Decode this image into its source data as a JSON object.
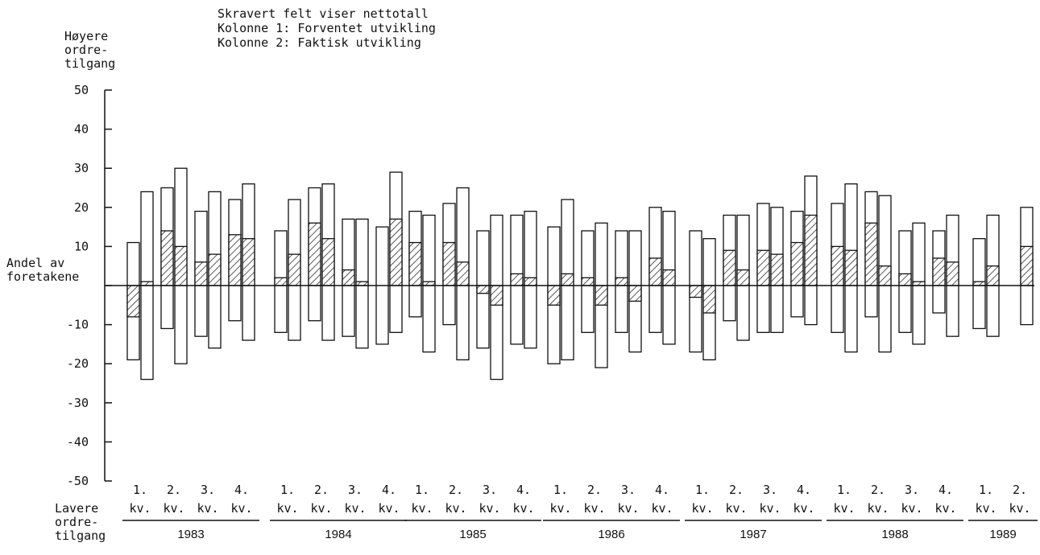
{
  "chart_data": {
    "type": "bar",
    "legend_lines": [
      "Skravert felt viser nettotall",
      "Kolonne 1:  Forventet utvikling",
      "Kolonne 2:  Faktisk utvikling"
    ],
    "upper_axis_label": [
      "Høyere",
      "ordre-",
      "tilgang"
    ],
    "lower_axis_label": [
      "Lavere",
      "ordre-",
      "tilgang"
    ],
    "zero_label": [
      "Andel av",
      "foretakene"
    ],
    "y_ticks": [
      "50",
      "40",
      "30",
      "20",
      "10",
      "0",
      "-10",
      "-20",
      "-30",
      "-40",
      "-50"
    ],
    "ylim": [
      -50,
      50
    ],
    "quarter_line1": [
      "1.",
      "2.",
      "3.",
      "4."
    ],
    "quarter_line2": "kv.",
    "years": [
      {
        "year": "1983",
        "quarters": [
          {
            "q": 1,
            "expected": {
              "up": 11,
              "down": -19,
              "net": -8
            },
            "actual": {
              "up": 24,
              "down": -24,
              "net": 1
            }
          },
          {
            "q": 2,
            "expected": {
              "up": 25,
              "down": -11,
              "net": 14
            },
            "actual": {
              "up": 30,
              "down": -20,
              "net": 10
            }
          },
          {
            "q": 3,
            "expected": {
              "up": 19,
              "down": -13,
              "net": 6
            },
            "actual": {
              "up": 24,
              "down": -16,
              "net": 8
            }
          },
          {
            "q": 4,
            "expected": {
              "up": 22,
              "down": -9,
              "net": 13
            },
            "actual": {
              "up": 26,
              "down": -14,
              "net": 12
            }
          }
        ]
      },
      {
        "year": "1984",
        "quarters": [
          {
            "q": 1,
            "expected": {
              "up": 14,
              "down": -12,
              "net": 2
            },
            "actual": {
              "up": 22,
              "down": -14,
              "net": 8
            }
          },
          {
            "q": 2,
            "expected": {
              "up": 25,
              "down": -9,
              "net": 16
            },
            "actual": {
              "up": 26,
              "down": -14,
              "net": 12
            }
          },
          {
            "q": 3,
            "expected": {
              "up": 17,
              "down": -13,
              "net": 4
            },
            "actual": {
              "up": 17,
              "down": -16,
              "net": 1
            }
          },
          {
            "q": 4,
            "expected": {
              "up": 15,
              "down": -15,
              "net": 0
            },
            "actual": {
              "up": 29,
              "down": -12,
              "net": 17
            }
          }
        ]
      },
      {
        "year": "1985",
        "quarters": [
          {
            "q": 1,
            "expected": {
              "up": 19,
              "down": -8,
              "net": 11
            },
            "actual": {
              "up": 18,
              "down": -17,
              "net": 1
            }
          },
          {
            "q": 2,
            "expected": {
              "up": 21,
              "down": -10,
              "net": 11
            },
            "actual": {
              "up": 25,
              "down": -19,
              "net": 6
            }
          },
          {
            "q": 3,
            "expected": {
              "up": 14,
              "down": -16,
              "net": -2
            },
            "actual": {
              "up": 18,
              "down": -24,
              "net": -5
            }
          },
          {
            "q": 4,
            "expected": {
              "up": 18,
              "down": -15,
              "net": 3
            },
            "actual": {
              "up": 19,
              "down": -16,
              "net": 2
            }
          }
        ]
      },
      {
        "year": "1986",
        "quarters": [
          {
            "q": 1,
            "expected": {
              "up": 15,
              "down": -20,
              "net": -5
            },
            "actual": {
              "up": 22,
              "down": -19,
              "net": 3
            }
          },
          {
            "q": 2,
            "expected": {
              "up": 14,
              "down": -12,
              "net": 2
            },
            "actual": {
              "up": 16,
              "down": -21,
              "net": -5
            }
          },
          {
            "q": 3,
            "expected": {
              "up": 14,
              "down": -12,
              "net": 2
            },
            "actual": {
              "up": 14,
              "down": -17,
              "net": -4
            }
          },
          {
            "q": 4,
            "expected": {
              "up": 20,
              "down": -12,
              "net": 7
            },
            "actual": {
              "up": 19,
              "down": -15,
              "net": 4
            }
          }
        ]
      },
      {
        "year": "1987",
        "quarters": [
          {
            "q": 1,
            "expected": {
              "up": 14,
              "down": -17,
              "net": -3
            },
            "actual": {
              "up": 12,
              "down": -19,
              "net": -7
            }
          },
          {
            "q": 2,
            "expected": {
              "up": 18,
              "down": -9,
              "net": 9
            },
            "actual": {
              "up": 18,
              "down": -14,
              "net": 4
            }
          },
          {
            "q": 3,
            "expected": {
              "up": 21,
              "down": -12,
              "net": 9
            },
            "actual": {
              "up": 20,
              "down": -12,
              "net": 8
            }
          },
          {
            "q": 4,
            "expected": {
              "up": 19,
              "down": -8,
              "net": 11
            },
            "actual": {
              "up": 28,
              "down": -10,
              "net": 18
            }
          }
        ]
      },
      {
        "year": "1988",
        "quarters": [
          {
            "q": 1,
            "expected": {
              "up": 21,
              "down": -12,
              "net": 10
            },
            "actual": {
              "up": 26,
              "down": -17,
              "net": 9
            }
          },
          {
            "q": 2,
            "expected": {
              "up": 24,
              "down": -8,
              "net": 16
            },
            "actual": {
              "up": 23,
              "down": -17,
              "net": 5
            }
          },
          {
            "q": 3,
            "expected": {
              "up": 14,
              "down": -12,
              "net": 3
            },
            "actual": {
              "up": 16,
              "down": -15,
              "net": 1
            }
          },
          {
            "q": 4,
            "expected": {
              "up": 14,
              "down": -7,
              "net": 7
            },
            "actual": {
              "up": 18,
              "down": -13,
              "net": 6
            }
          }
        ]
      },
      {
        "year": "1989",
        "quarters": [
          {
            "q": 1,
            "expected": {
              "up": 12,
              "down": -11,
              "net": 1
            },
            "actual": {
              "up": 18,
              "down": -13,
              "net": 5
            }
          },
          {
            "q": 2,
            "expected": null,
            "actual": {
              "up": 20,
              "down": -10,
              "net": 10
            }
          }
        ]
      }
    ]
  }
}
